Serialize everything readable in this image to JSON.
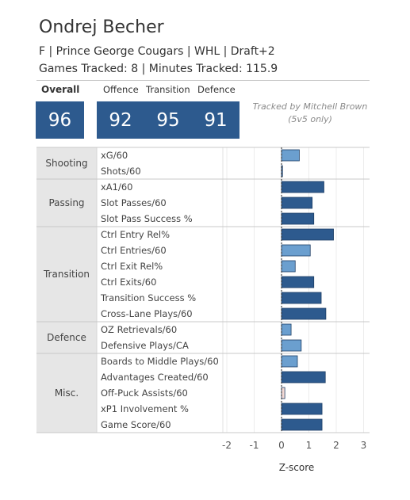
{
  "player": {
    "name": "Ondrej Becher",
    "info": "F | Prince George Cougars | WHL | Draft+2",
    "tracking": "Games Tracked: 8 | Minutes Tracked: 115.9"
  },
  "ratings": {
    "overall_label": "Overall",
    "overall_value": "96",
    "offence_label": "Offence",
    "offence_value": "92",
    "transition_label": "Transition",
    "transition_value": "95",
    "defence_label": "Defence",
    "defence_value": "91"
  },
  "credit": {
    "line1": "Tracked by Mitchell Brown",
    "line2": "(5v5 only)"
  },
  "colors": {
    "dark_bar": "#2d5a8e",
    "light_bar": "#6b9fcf",
    "pale_bar": "#f3d9d4",
    "category_bg": "#e6e6e6"
  },
  "chart_data": {
    "type": "bar",
    "orientation": "horizontal",
    "xlabel": "Z-score",
    "xlim": [
      -2.2,
      3.2
    ],
    "x_ticks": [
      "-2",
      "-1",
      "0",
      "1",
      "2",
      "3"
    ],
    "grid": true,
    "categories": [
      {
        "name": "Shooting",
        "metrics": [
          {
            "label": "xG/60",
            "value": 0.65,
            "shade": "light"
          },
          {
            "label": "Shots/60",
            "value": 0.02,
            "shade": "dark"
          }
        ]
      },
      {
        "name": "Passing",
        "metrics": [
          {
            "label": "xA1/60",
            "value": 1.55,
            "shade": "dark"
          },
          {
            "label": "Slot Passes/60",
            "value": 1.12,
            "shade": "dark"
          },
          {
            "label": "Slot Pass Success %",
            "value": 1.18,
            "shade": "dark"
          }
        ]
      },
      {
        "name": "Transition",
        "metrics": [
          {
            "label": "Ctrl Entry Rel%",
            "value": 1.9,
            "shade": "dark"
          },
          {
            "label": "Ctrl Entries/60",
            "value": 1.05,
            "shade": "light"
          },
          {
            "label": "Ctrl Exit Rel%",
            "value": 0.5,
            "shade": "light"
          },
          {
            "label": "Ctrl Exits/60",
            "value": 1.18,
            "shade": "dark"
          },
          {
            "label": "Transition Success %",
            "value": 1.45,
            "shade": "dark"
          },
          {
            "label": "Cross-Lane Plays/60",
            "value": 1.62,
            "shade": "dark"
          }
        ]
      },
      {
        "name": "Defence",
        "metrics": [
          {
            "label": "OZ Retrievals/60",
            "value": 0.35,
            "shade": "light"
          },
          {
            "label": "Defensive Plays/CA",
            "value": 0.72,
            "shade": "light"
          }
        ]
      },
      {
        "name": "Misc.",
        "metrics": [
          {
            "label": "Boards to Middle Plays/60",
            "value": 0.58,
            "shade": "light"
          },
          {
            "label": "Advantages Created/60",
            "value": 1.6,
            "shade": "dark"
          },
          {
            "label": "Off-Puck Assists/60",
            "value": 0.12,
            "shade": "pale"
          },
          {
            "label": "xP1 Involvement %",
            "value": 1.48,
            "shade": "dark"
          },
          {
            "label": "Game Score/60",
            "value": 1.48,
            "shade": "dark"
          }
        ]
      }
    ]
  }
}
